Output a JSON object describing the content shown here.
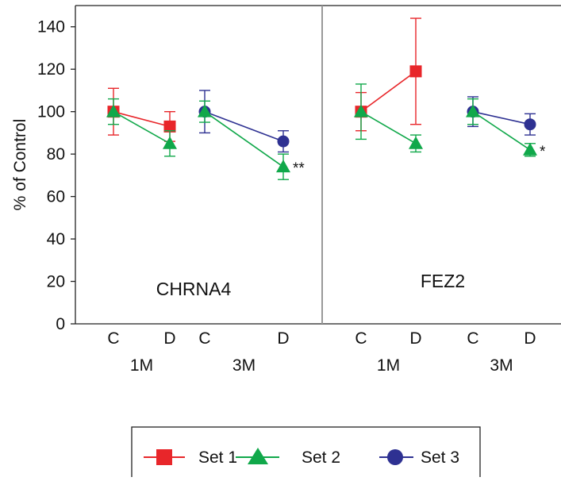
{
  "chart_data": {
    "type": "line",
    "ylabel": "% of Control",
    "ylim": [
      0,
      150
    ],
    "yticks": [
      0,
      20,
      40,
      60,
      80,
      100,
      120,
      140
    ],
    "grid": false,
    "legend_position": "bottom-center",
    "legend": [
      "Set 1",
      "Set 2",
      "Set 3"
    ],
    "colors": {
      "Set 1": "#e8262a",
      "Set 2": "#10a84a",
      "Set 3": "#2e3192"
    },
    "markers": {
      "Set 1": "square",
      "Set 2": "triangle",
      "Set 3": "circle"
    },
    "panels": [
      {
        "label": "CHRNA4",
        "groups": [
          {
            "label": "1M",
            "categories": [
              "C",
              "D"
            ]
          },
          {
            "label": "3M",
            "categories": [
              "C",
              "D"
            ]
          }
        ],
        "series": [
          {
            "name": "Set 1",
            "group": "1M",
            "values": [
              100,
              93
            ],
            "errors": [
              11,
              7
            ]
          },
          {
            "name": "Set 2",
            "group": "1M",
            "values": [
              100,
              85
            ],
            "errors": [
              6,
              6
            ]
          },
          {
            "name": "Set 3",
            "group": "3M",
            "values": [
              100,
              86
            ],
            "errors": [
              10,
              5
            ]
          },
          {
            "name": "Set 2",
            "group": "3M",
            "values": [
              100,
              74
            ],
            "errors": [
              5,
              6
            ]
          }
        ],
        "annotations": [
          {
            "group": "3M",
            "category": "D",
            "series": "Set 2",
            "text": "**"
          }
        ]
      },
      {
        "label": "FEZ2",
        "groups": [
          {
            "label": "1M",
            "categories": [
              "C",
              "D"
            ]
          },
          {
            "label": "3M",
            "categories": [
              "C",
              "D"
            ]
          }
        ],
        "series": [
          {
            "name": "Set 1",
            "group": "1M",
            "values": [
              100,
              119
            ],
            "errors": [
              9,
              25
            ]
          },
          {
            "name": "Set 2",
            "group": "1M",
            "values": [
              100,
              85
            ],
            "errors": [
              13,
              4
            ]
          },
          {
            "name": "Set 3",
            "group": "3M",
            "values": [
              100,
              94
            ],
            "errors": [
              7,
              5
            ]
          },
          {
            "name": "Set 2",
            "group": "3M",
            "values": [
              100,
              82
            ],
            "errors": [
              6,
              3
            ]
          }
        ],
        "annotations": [
          {
            "group": "3M",
            "category": "D",
            "series": "Set 2",
            "text": "*"
          }
        ]
      }
    ]
  }
}
